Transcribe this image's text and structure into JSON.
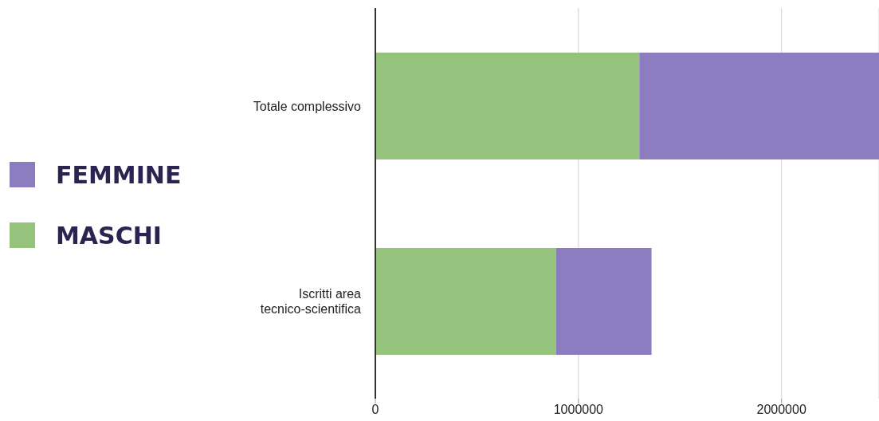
{
  "chart_data": {
    "type": "bar",
    "orientation": "horizontal",
    "stacked": true,
    "categories": [
      "Totale complessivo",
      "Iscritti area tecnico-scientifica"
    ],
    "series": [
      {
        "name": "MASCHI",
        "color": "#95c37d",
        "values": [
          1300000,
          890000
        ]
      },
      {
        "name": "FEMMINE",
        "color": "#8c7dc1",
        "values": [
          1180000,
          470000
        ]
      }
    ],
    "xlim": [
      0,
      2480000
    ],
    "xticks": [
      0,
      1000000,
      2000000
    ],
    "grid": "x",
    "legend": "left"
  }
}
